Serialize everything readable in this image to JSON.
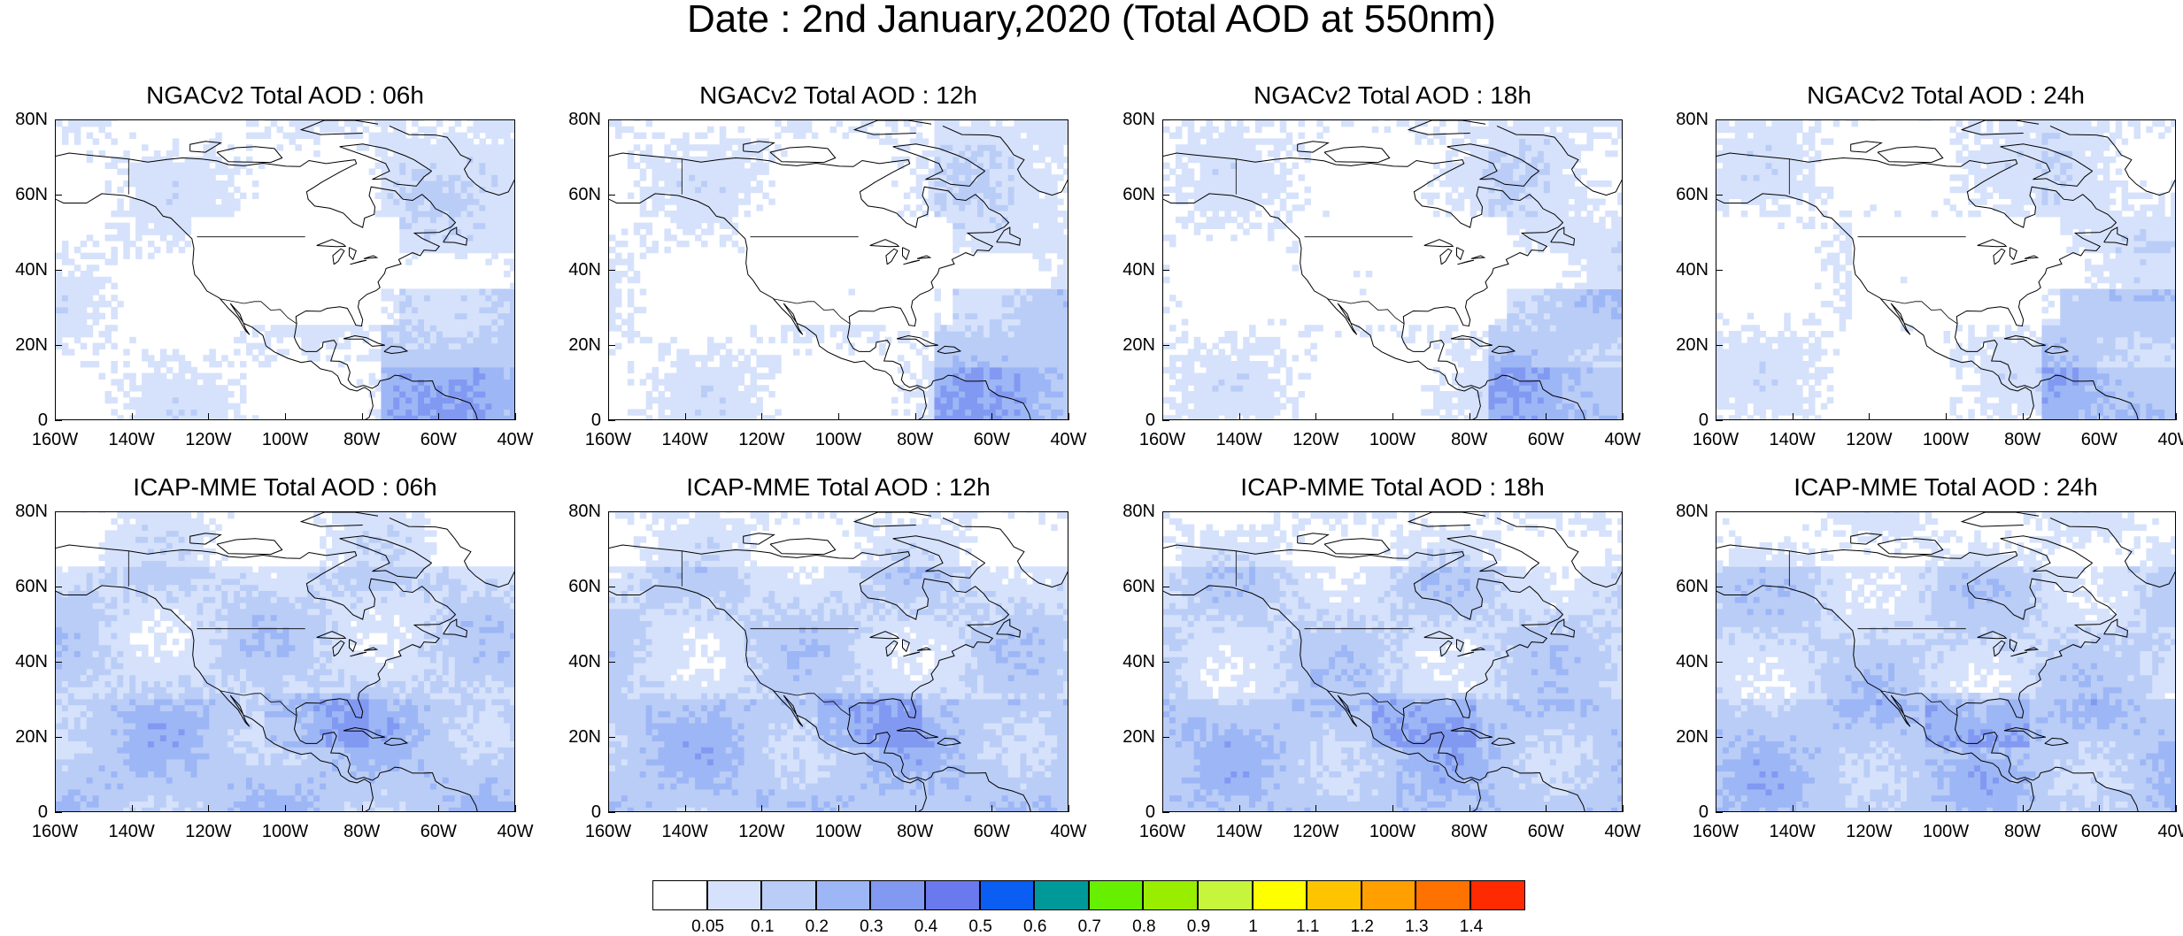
{
  "title": "Date : 2nd January,2020 (Total AOD at 550nm)",
  "y_ticks": [
    "80N",
    "60N",
    "40N",
    "20N",
    "0"
  ],
  "x_ticks": [
    "160W",
    "140W",
    "120W",
    "100W",
    "80W",
    "60W",
    "40W"
  ],
  "panels": [
    {
      "title": "NGACv2 Total AOD : 06h"
    },
    {
      "title": "NGACv2 Total AOD : 12h"
    },
    {
      "title": "NGACv2 Total AOD : 18h"
    },
    {
      "title": "NGACv2 Total AOD : 24h"
    },
    {
      "title": "ICAP-MME Total AOD : 06h"
    },
    {
      "title": "ICAP-MME Total AOD : 12h"
    },
    {
      "title": "ICAP-MME Total AOD : 18h"
    },
    {
      "title": "ICAP-MME Total AOD : 24h"
    }
  ],
  "colorbar": {
    "colors": [
      "#ffffff",
      "#d6e2fb",
      "#bacdf7",
      "#9db6f5",
      "#8299f2",
      "#6b79ef",
      "#0a5ff2",
      "#009999",
      "#66f000",
      "#99ee00",
      "#c6f53c",
      "#ffff00",
      "#ffc400",
      "#ff9f00",
      "#ff7200",
      "#ff2a00"
    ],
    "labels": [
      "0.05",
      "0.1",
      "0.2",
      "0.3",
      "0.4",
      "0.5",
      "0.6",
      "0.7",
      "0.8",
      "0.9",
      "1",
      "1.1",
      "1.2",
      "1.3",
      "1.4"
    ]
  }
}
